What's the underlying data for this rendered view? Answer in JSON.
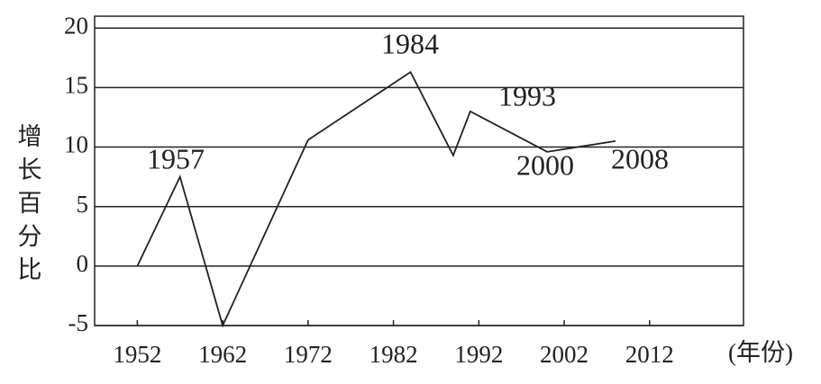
{
  "chart_data": {
    "type": "line",
    "x": [
      1952,
      1957,
      1962,
      1972,
      1984,
      1989,
      1991,
      2000,
      2008
    ],
    "series": [
      {
        "color": "#222222",
        "values": [
          0,
          7.5,
          -5,
          10.6,
          16.3,
          9.3,
          13,
          9.6,
          10.5
        ]
      }
    ],
    "xlim": [
      1947,
      2023
    ],
    "xticks": [
      1952,
      1962,
      1972,
      1982,
      1992,
      2002,
      2012
    ],
    "ylim": [
      -5,
      21
    ],
    "yticks": [
      -5,
      0,
      5,
      10,
      15,
      20
    ],
    "ylabel": "增长百分比",
    "xlabel": "(年份)",
    "grid": true,
    "annotations": [
      "1957",
      "1984",
      "1993",
      "2000",
      "2008"
    ]
  }
}
